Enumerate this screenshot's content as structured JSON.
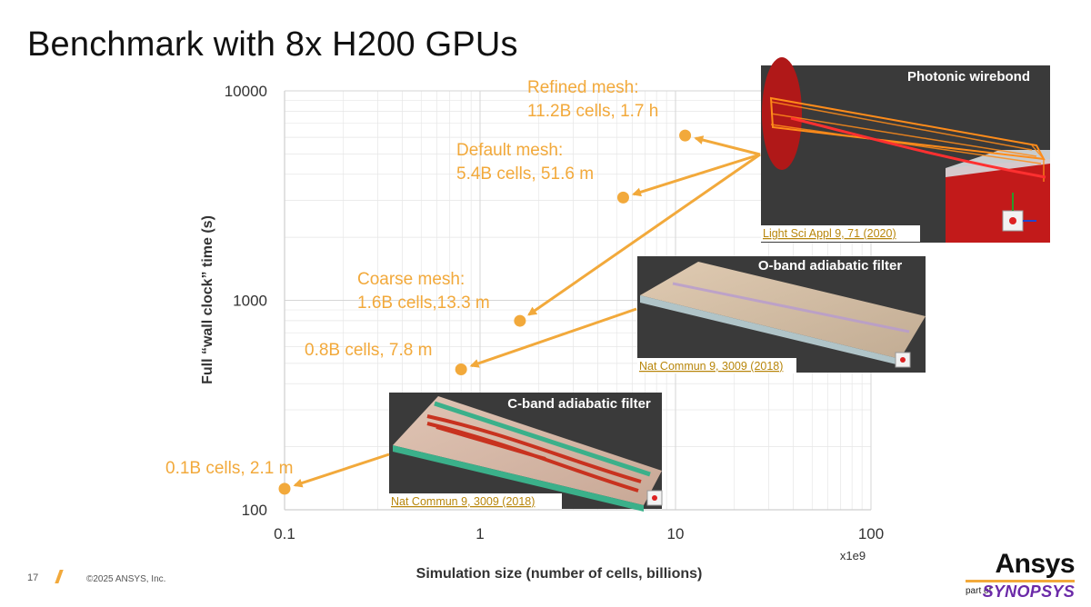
{
  "slide": {
    "title": "Benchmark with 8x H200 GPUs",
    "page_number": "17",
    "copyright": "©2025 ANSYS, Inc.",
    "logo": {
      "brand": "Ansys",
      "part_of": "part of",
      "parent": "SYNOPSYS"
    }
  },
  "colors": {
    "accent": "#F2A93B",
    "grid": "#e6e6e6",
    "axis": "#cfcfcf",
    "panel_bg": "#3a3a3a",
    "cite": "#B8860B"
  },
  "chart_data": {
    "type": "scatter",
    "xscale": "log",
    "yscale": "log",
    "xlim": [
      0.1,
      100
    ],
    "ylim": [
      100,
      10000
    ],
    "xticks": [
      0.1,
      1,
      10,
      100
    ],
    "xtick_labels": [
      "0.1",
      "1",
      "10",
      "100"
    ],
    "yticks": [
      100,
      1000,
      10000
    ],
    "ytick_labels": [
      "100",
      "1000",
      "10000"
    ],
    "xlabel": "Simulation size (number of cells, billions)",
    "ylabel": "Full “wall clock” time (s)",
    "x_multiplier_label": "x1e9",
    "grid": true,
    "series": [
      {
        "x": [
          0.1,
          0.8,
          1.6,
          5.4,
          11.2
        ],
        "y": [
          126,
          468,
          798,
          3096,
          6120
        ]
      }
    ],
    "annotations": [
      {
        "lines": [
          "Refined mesh:",
          "11.2B cells, 1.7 h"
        ],
        "x": 11.2,
        "y": 6120
      },
      {
        "lines": [
          "Default mesh:",
          "5.4B cells, 51.6 m"
        ],
        "x": 5.4,
        "y": 3096
      },
      {
        "lines": [
          "Coarse mesh:",
          "1.6B cells,13.3 m"
        ],
        "x": 1.6,
        "y": 798
      },
      {
        "lines": [
          "0.8B cells, 7.8 m"
        ],
        "x": 0.8,
        "y": 468
      },
      {
        "lines": [
          "0.1B cells, 2.1 m"
        ],
        "x": 0.1,
        "y": 126
      }
    ]
  },
  "panels": [
    {
      "title": "Photonic wirebond",
      "citation": "Light Sci Appl 9, 71 (2020)"
    },
    {
      "title": "O-band adiabatic filter",
      "citation": "Nat Commun 9, 3009 (2018)"
    },
    {
      "title": "C-band adiabatic filter",
      "citation": "Nat Commun 9, 3009 (2018)"
    }
  ]
}
